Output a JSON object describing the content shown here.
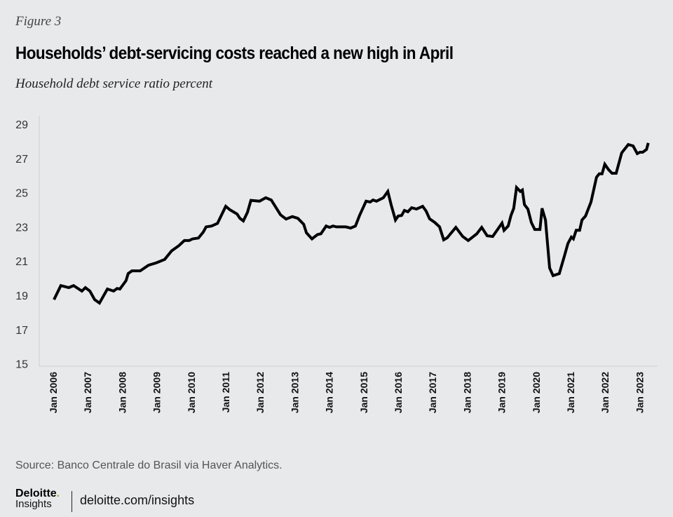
{
  "figure_label": "Figure 3",
  "chart_data": {
    "type": "line",
    "title": "Households’ debt-servicing costs reached a new high in April",
    "subtitle": "Household debt service ratio percent",
    "xlabel": "",
    "ylabel": "Household debt service ratio percent",
    "ylim": [
      15,
      29
    ],
    "xlim": [
      2006,
      2023.25
    ],
    "grid": false,
    "y_ticks": [
      "15",
      "17",
      "19",
      "21",
      "23",
      "25",
      "27",
      "29"
    ],
    "x_ticks": [
      "Jan 2006",
      "Jan 2007",
      "Jan 2008",
      "Jan 2009",
      "Jan 2010",
      "Jan 2011",
      "Jan 2012",
      "Jan 2013",
      "Jan 2014",
      "Jan 2015",
      "Jan 2016",
      "Jan 2017",
      "Jan 2018",
      "Jan 2019",
      "Jan 2020",
      "Jan 2021",
      "Jan 2022",
      "Jan 2023"
    ],
    "series": [
      {
        "name": "Household debt service ratio",
        "color": "#000000",
        "x": [
          2006.02,
          2006.22,
          2006.45,
          2006.59,
          2006.83,
          2006.93,
          2007.06,
          2007.2,
          2007.34,
          2007.57,
          2007.75,
          2007.85,
          2007.93,
          2008.11,
          2008.17,
          2008.28,
          2008.52,
          2008.76,
          2008.99,
          2009.23,
          2009.43,
          2009.64,
          2009.8,
          2009.94,
          2010.04,
          2010.21,
          2010.35,
          2010.43,
          2010.59,
          2010.76,
          2011.0,
          2011.12,
          2011.33,
          2011.41,
          2011.51,
          2011.63,
          2011.73,
          2011.98,
          2012.16,
          2012.32,
          2012.59,
          2012.75,
          2012.93,
          2013.09,
          2013.26,
          2013.34,
          2013.5,
          2013.66,
          2013.76,
          2013.91,
          2014.01,
          2014.11,
          2014.21,
          2014.48,
          2014.62,
          2014.76,
          2014.88,
          2015.07,
          2015.19,
          2015.27,
          2015.37,
          2015.57,
          2015.7,
          2015.8,
          2015.92,
          2016.0,
          2016.1,
          2016.18,
          2016.28,
          2016.39,
          2016.53,
          2016.71,
          2016.81,
          2016.91,
          2017.06,
          2017.2,
          2017.32,
          2017.42,
          2017.67,
          2017.87,
          2018.03,
          2018.28,
          2018.42,
          2018.58,
          2018.74,
          2019.01,
          2019.07,
          2019.19,
          2019.27,
          2019.35,
          2019.43,
          2019.54,
          2019.6,
          2019.66,
          2019.76,
          2019.86,
          2019.96,
          2020.11,
          2020.17,
          2020.27,
          2020.39,
          2020.49,
          2020.67,
          2020.82,
          2020.92,
          2021.02,
          2021.08,
          2021.16,
          2021.26,
          2021.33,
          2021.43,
          2021.59,
          2021.75,
          2021.83,
          2021.91,
          2021.99,
          2022.1,
          2022.2,
          2022.32,
          2022.48,
          2022.67,
          2022.81,
          2022.93,
          2023.01,
          2023.09,
          2023.2,
          2023.25
        ],
        "values": [
          18.75,
          19.57,
          19.45,
          19.57,
          19.25,
          19.45,
          19.25,
          18.75,
          18.55,
          19.37,
          19.25,
          19.4,
          19.37,
          19.86,
          20.27,
          20.43,
          20.43,
          20.76,
          20.9,
          21.1,
          21.6,
          21.9,
          22.2,
          22.2,
          22.3,
          22.35,
          22.7,
          23.0,
          23.05,
          23.2,
          24.2,
          24.0,
          23.75,
          23.5,
          23.35,
          23.85,
          24.55,
          24.5,
          24.7,
          24.57,
          23.7,
          23.46,
          23.6,
          23.5,
          23.15,
          22.65,
          22.3,
          22.55,
          22.6,
          23.05,
          22.97,
          23.05,
          23.0,
          23.0,
          22.93,
          23.05,
          23.67,
          24.5,
          24.45,
          24.57,
          24.5,
          24.7,
          25.07,
          24.25,
          23.4,
          23.63,
          23.67,
          23.96,
          23.88,
          24.12,
          24.04,
          24.2,
          23.92,
          23.47,
          23.26,
          23.0,
          22.24,
          22.36,
          22.97,
          22.44,
          22.2,
          22.6,
          22.97,
          22.48,
          22.44,
          23.22,
          22.8,
          23.05,
          23.67,
          24.08,
          25.3,
          25.07,
          25.15,
          24.3,
          24.04,
          23.26,
          22.85,
          22.85,
          24.08,
          23.4,
          20.6,
          20.15,
          20.27,
          21.3,
          22.03,
          22.4,
          22.3,
          22.8,
          22.8,
          23.4,
          23.63,
          24.45,
          25.9,
          26.1,
          26.1,
          26.66,
          26.34,
          26.13,
          26.13,
          27.32,
          27.81,
          27.73,
          27.28,
          27.36,
          27.36,
          27.52,
          27.9
        ]
      }
    ]
  },
  "footer": {
    "source": "Source:  Banco Centrale do Brasil via Haver Analytics.",
    "logo_brand": "Deloitte",
    "logo_dot": ".",
    "logo_sub": "Insights",
    "url": "deloitte.com/insights"
  },
  "colors": {
    "background": "#e8e9eb",
    "line": "#000000",
    "axis": "#cfcfd2",
    "logo_dot": "#86bc25"
  }
}
